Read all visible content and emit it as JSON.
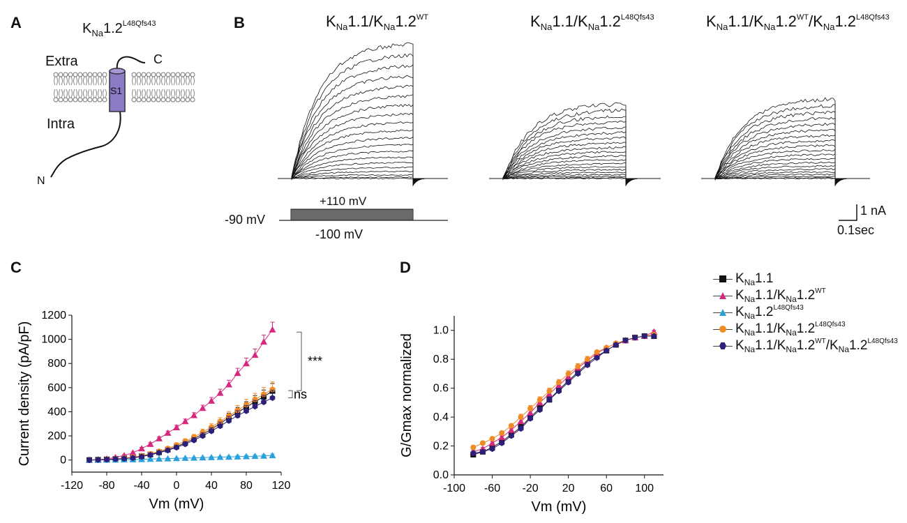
{
  "panels": {
    "a": {
      "letter": "A",
      "title_main": "K",
      "title_sub": "Na",
      "title_rest": "1.2",
      "title_sup": "L48Qfs43",
      "extra_label": "Extra",
      "intra_label": "Intra",
      "segment_label": "S1",
      "c_label": "C",
      "n_label": "N"
    },
    "b": {
      "letter": "B",
      "trace1": {
        "parts": [
          "K",
          "Na",
          "1.1/K",
          "Na",
          "1.2",
          "WT"
        ]
      },
      "trace2": {
        "parts": [
          "K",
          "Na",
          "1.1/K",
          "Na",
          "1.2",
          "L48Qfs43"
        ]
      },
      "trace3": {
        "parts": [
          "K",
          "Na",
          "1.1/K",
          "Na",
          "1.2",
          "WT",
          "/K",
          "Na",
          "1.2",
          "L48Qfs43"
        ]
      },
      "protocol": {
        "hold": "-90 mV",
        "top": "+110 mV",
        "bottom": "-100 mV"
      },
      "scale": {
        "current": "1 nA",
        "time": "0.1sec"
      }
    },
    "c": {
      "letter": "C"
    },
    "d": {
      "letter": "D"
    }
  },
  "legend": [
    {
      "parts": [
        "K",
        "Na",
        "1.1"
      ],
      "color": "#111111",
      "marker": "square"
    },
    {
      "parts": [
        "K",
        "Na",
        "1.1/K",
        "Na",
        "1.2",
        "WT"
      ],
      "color": "#d6287f",
      "marker": "triangle"
    },
    {
      "parts": [
        "K",
        "Na",
        "1.2",
        "L48Qfs43"
      ],
      "color": "#2aa0dc",
      "marker": "triangle"
    },
    {
      "parts": [
        "K",
        "Na",
        "1.1/K",
        "Na",
        "1.2",
        "L48Qfs43"
      ],
      "color": "#f08a24",
      "marker": "circle"
    },
    {
      "parts": [
        "K",
        "Na",
        "1.1/K",
        "Na",
        "1.2",
        "WT",
        "/K",
        "Na",
        "1.2",
        "L48Qfs43"
      ],
      "color": "#2b1f7a",
      "marker": "hexagon"
    }
  ],
  "chart_data": [
    {
      "type": "line",
      "panel": "C",
      "xlabel": "Vm (mV)",
      "ylabel": "Current density (pA/pF)",
      "xlim": [
        -120,
        120
      ],
      "ylim": [
        -100,
        1200
      ],
      "xticks": [
        "-120",
        "-80",
        "-40",
        "0",
        "40",
        "80",
        "120"
      ],
      "yticks": [
        "0",
        "200",
        "400",
        "600",
        "800",
        "1000",
        "1200"
      ],
      "x": [
        -100,
        -90,
        -80,
        -70,
        -60,
        -50,
        -40,
        -30,
        -20,
        -10,
        0,
        10,
        20,
        30,
        40,
        50,
        60,
        70,
        80,
        90,
        100,
        110
      ],
      "series": [
        {
          "name": "KNa1.1",
          "values": [
            0,
            2,
            5,
            9,
            14,
            20,
            32,
            46,
            64,
            86,
            112,
            142,
            176,
            214,
            256,
            302,
            352,
            396,
            438,
            484,
            524,
            572
          ]
        },
        {
          "name": "KNa1.1/KNa1.2WT",
          "values": [
            0,
            4,
            10,
            22,
            38,
            60,
            95,
            132,
            178,
            224,
            270,
            320,
            370,
            430,
            490,
            555,
            625,
            720,
            800,
            870,
            980,
            1080
          ]
        },
        {
          "name": "KNa1.2L48Qfs43",
          "values": [
            0,
            0,
            1,
            2,
            3,
            4,
            6,
            8,
            10,
            12,
            14,
            16,
            18,
            20,
            22,
            24,
            26,
            28,
            30,
            32,
            34,
            38
          ]
        },
        {
          "name": "KNa1.1/KNa1.2L48Qfs43",
          "values": [
            0,
            2,
            6,
            10,
            16,
            24,
            36,
            52,
            72,
            96,
            124,
            156,
            190,
            230,
            272,
            318,
            366,
            412,
            458,
            502,
            545,
            585
          ]
        },
        {
          "name": "KNa1.1/KNa1.2WT/KNa1.2L48Qfs43",
          "values": [
            0,
            2,
            4,
            8,
            12,
            18,
            28,
            42,
            60,
            80,
            104,
            132,
            164,
            200,
            240,
            282,
            326,
            368,
            406,
            444,
            480,
            515
          ]
        }
      ],
      "errors": [
        0,
        2,
        3,
        4,
        6,
        8,
        10,
        12,
        14,
        16,
        18,
        20,
        22,
        25,
        28,
        32,
        36,
        40,
        45,
        50,
        56,
        62
      ],
      "annotations": [
        {
          "text": "***"
        },
        {
          "text": "ns"
        }
      ]
    },
    {
      "type": "line",
      "panel": "D",
      "xlabel": "Vm (mV)",
      "ylabel": "G/Gmax normalized",
      "xlim": [
        -100,
        120
      ],
      "ylim": [
        0,
        1.1
      ],
      "xticks": [
        "-100",
        "-60",
        "-20",
        "20",
        "60",
        "100"
      ],
      "yticks": [
        "0.0",
        "0.2",
        "0.4",
        "0.6",
        "0.8",
        "1.0"
      ],
      "x": [
        -80,
        -70,
        -60,
        -50,
        -40,
        -30,
        -20,
        -10,
        0,
        10,
        20,
        30,
        40,
        50,
        60,
        70,
        80,
        90,
        100,
        110
      ],
      "series": [
        {
          "name": "KNa1.1",
          "values": [
            0.14,
            0.16,
            0.19,
            0.23,
            0.28,
            0.33,
            0.4,
            0.46,
            0.52,
            0.59,
            0.65,
            0.71,
            0.77,
            0.82,
            0.86,
            0.9,
            0.93,
            0.95,
            0.96,
            0.96
          ]
        },
        {
          "name": "KNa1.1/KNa1.2WT",
          "values": [
            0.16,
            0.18,
            0.22,
            0.26,
            0.31,
            0.37,
            0.43,
            0.5,
            0.56,
            0.62,
            0.68,
            0.74,
            0.79,
            0.84,
            0.88,
            0.91,
            0.93,
            0.95,
            0.96,
            0.99
          ]
        },
        {
          "name": "KNa1.1/KNa1.2L48Qfs43",
          "values": [
            0.19,
            0.22,
            0.25,
            0.29,
            0.34,
            0.4,
            0.46,
            0.52,
            0.58,
            0.64,
            0.7,
            0.75,
            0.8,
            0.85,
            0.88,
            0.91,
            0.93,
            0.95,
            0.96,
            0.97
          ]
        },
        {
          "name": "KNa1.1/KNa1.2WT/KNa1.2L48Qfs43",
          "values": [
            0.15,
            0.16,
            0.18,
            0.22,
            0.27,
            0.32,
            0.39,
            0.45,
            0.52,
            0.58,
            0.64,
            0.7,
            0.76,
            0.81,
            0.86,
            0.9,
            0.93,
            0.95,
            0.96,
            0.96
          ]
        }
      ],
      "errors": [
        0.01,
        0.01,
        0.01,
        0.01,
        0.01,
        0.02,
        0.02,
        0.02,
        0.02,
        0.02,
        0.02,
        0.02,
        0.02,
        0.01,
        0.01,
        0.01,
        0.01,
        0.01,
        0.01,
        0.01
      ]
    }
  ]
}
